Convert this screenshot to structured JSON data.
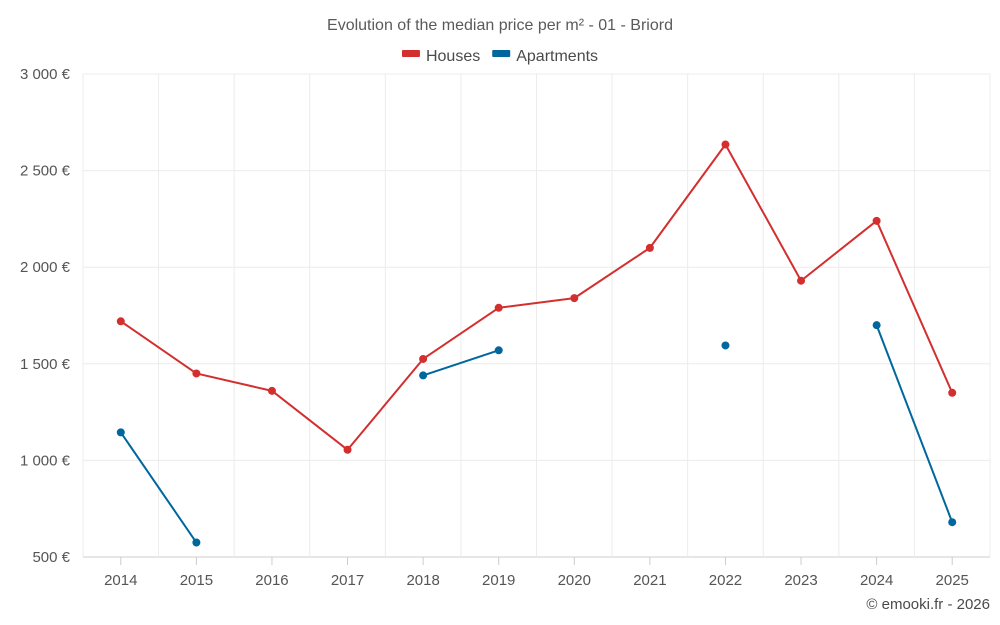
{
  "chart_data": {
    "type": "line",
    "title": "Evolution of the median price per m² - 01 - Briord",
    "xlabel": "",
    "ylabel": "",
    "categories": [
      "2014",
      "2015",
      "2016",
      "2017",
      "2018",
      "2019",
      "2020",
      "2021",
      "2022",
      "2023",
      "2024",
      "2025"
    ],
    "ylim": [
      500,
      3000
    ],
    "yticks": [
      500,
      1000,
      1500,
      2000,
      2500,
      3000
    ],
    "ytick_labels": [
      "500 €",
      "1 000 €",
      "1 500 €",
      "2 000 €",
      "2 500 €",
      "3 000 €"
    ],
    "grid": true,
    "legend_position": "top-center",
    "series": [
      {
        "name": "Houses",
        "color": "#d32f2f",
        "values": [
          1720,
          1450,
          1360,
          1055,
          1525,
          1790,
          1840,
          2100,
          2635,
          1930,
          2240,
          1350
        ]
      },
      {
        "name": "Apartments",
        "color": "#00679e",
        "values": [
          1145,
          575,
          null,
          null,
          1440,
          1570,
          null,
          null,
          1595,
          null,
          1700,
          680
        ]
      }
    ]
  },
  "credit": "© emooki.fr - 2026"
}
